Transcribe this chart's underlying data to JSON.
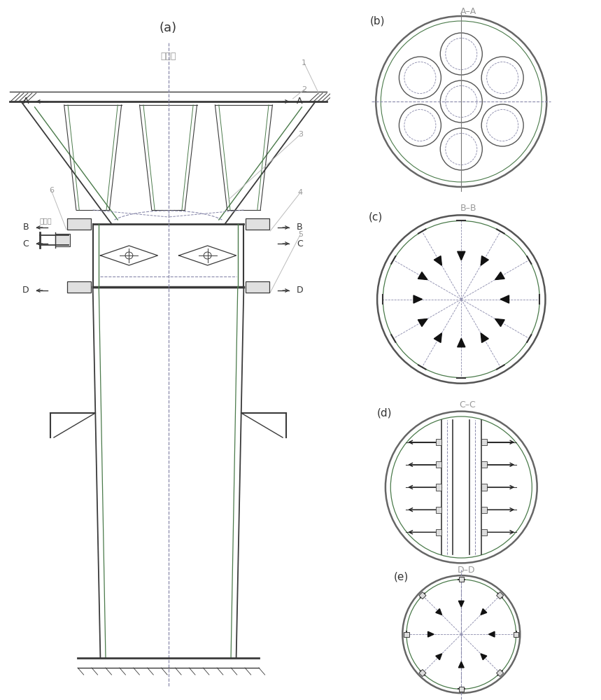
{
  "bg_color": "#ffffff",
  "line_color": "#3a3a3a",
  "dash_color": "#8888aa",
  "green_color": "#4a7a4a",
  "pink_color": "#cc88aa",
  "title_a": "A–A",
  "title_b": "B–B",
  "title_c": "C–C",
  "title_d": "D–D",
  "label_a": "(a)",
  "label_b": "(b)",
  "label_c": "(c)",
  "label_d": "(d)",
  "label_e": "(e)",
  "top_text": "来流气",
  "water_label": "洗涤液"
}
